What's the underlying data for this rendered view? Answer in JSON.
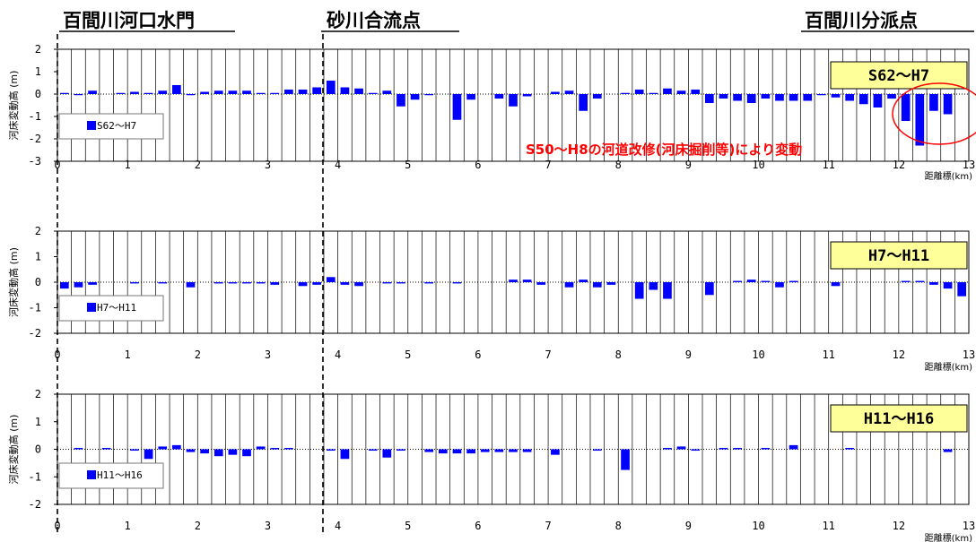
{
  "headers": {
    "left": "百間川河口水門",
    "middle": "砂川合流点",
    "right": "百間川分派点"
  },
  "annotation": {
    "text": "S50～H8の河道改修(河床掘削等)により変動",
    "color": "#ff0000"
  },
  "colors": {
    "bar": "#0000ff",
    "period_box": "#ffff99",
    "annotation": "#ff0000"
  },
  "chart_data": [
    {
      "type": "bar",
      "title": "S62～H7",
      "legend": "S62～H7",
      "ylabel": "河床変動高",
      "yunit": "(m)",
      "xlabel": "距離標",
      "xunit": "(km)",
      "ylim": [
        -3,
        2
      ],
      "yticks": [
        2,
        1,
        0,
        -1,
        -2,
        -3
      ],
      "xlim": [
        0,
        13
      ],
      "xticks": [
        0,
        1,
        2,
        3,
        4,
        5,
        6,
        7,
        8,
        9,
        10,
        11,
        12,
        13
      ],
      "grid": true,
      "x": [
        0.0,
        0.2,
        0.4,
        0.6,
        0.8,
        1.0,
        1.2,
        1.4,
        1.6,
        1.8,
        2.0,
        2.2,
        2.4,
        2.6,
        2.8,
        3.0,
        3.2,
        3.4,
        3.6,
        3.8,
        4.0,
        4.2,
        4.4,
        4.6,
        4.8,
        5.0,
        5.2,
        5.4,
        5.6,
        5.8,
        6.0,
        6.2,
        6.4,
        6.6,
        6.8,
        7.0,
        7.2,
        7.4,
        7.6,
        7.8,
        8.0,
        8.2,
        8.4,
        8.6,
        8.8,
        9.0,
        9.2,
        9.4,
        9.6,
        9.8,
        10.0,
        10.2,
        10.4,
        10.6,
        10.8,
        11.0,
        11.2,
        11.4,
        11.6,
        11.8,
        12.0,
        12.2,
        12.4,
        12.6,
        12.8
      ],
      "values": [
        0.05,
        -0.05,
        0.15,
        0,
        0.05,
        0.1,
        0.05,
        0.15,
        0.4,
        -0.05,
        0.1,
        0.15,
        0.15,
        0.15,
        0.05,
        0.05,
        0.2,
        0.2,
        0.3,
        0.6,
        0.3,
        0.25,
        0.05,
        0.15,
        -0.55,
        -0.25,
        -0.05,
        0,
        -1.15,
        -0.25,
        0,
        -0.2,
        -0.55,
        -0.1,
        0,
        0.1,
        0.15,
        -0.75,
        -0.2,
        0,
        0.05,
        0.2,
        0.05,
        0.25,
        0.15,
        0.2,
        -0.4,
        -0.2,
        -0.3,
        -0.4,
        -0.2,
        -0.3,
        -0.3,
        -0.3,
        -0.05,
        -0.15,
        -0.3,
        -0.45,
        -0.6,
        -0.2,
        -1.2,
        -2.3,
        -0.75,
        -0.9,
        0
      ]
    },
    {
      "type": "bar",
      "title": "H7～H11",
      "legend": "H7～H11",
      "ylabel": "河床変動高",
      "yunit": "(m)",
      "xlabel": "距離標",
      "xunit": "(km)",
      "ylim": [
        -2,
        2
      ],
      "yticks": [
        2,
        1,
        0,
        -1,
        -2
      ],
      "xlim": [
        0,
        13
      ],
      "xticks": [
        0,
        1,
        2,
        3,
        4,
        5,
        6,
        7,
        8,
        9,
        10,
        11,
        12,
        13
      ],
      "grid": true,
      "x": [
        0.0,
        0.2,
        0.4,
        0.6,
        0.8,
        1.0,
        1.2,
        1.4,
        1.6,
        1.8,
        2.0,
        2.2,
        2.4,
        2.6,
        2.8,
        3.0,
        3.2,
        3.4,
        3.6,
        3.8,
        4.0,
        4.2,
        4.4,
        4.6,
        4.8,
        5.0,
        5.2,
        5.4,
        5.6,
        5.8,
        6.0,
        6.2,
        6.4,
        6.6,
        6.8,
        7.0,
        7.2,
        7.4,
        7.6,
        7.8,
        8.0,
        8.2,
        8.4,
        8.6,
        8.8,
        9.0,
        9.2,
        9.4,
        9.6,
        9.8,
        10.0,
        10.2,
        10.4,
        10.6,
        10.8,
        11.0,
        11.2,
        11.4,
        11.6,
        11.8,
        12.0,
        12.2,
        12.4,
        12.6,
        12.8
      ],
      "values": [
        -0.25,
        -0.2,
        -0.1,
        0,
        0,
        -0.05,
        0,
        -0.05,
        0,
        -0.2,
        0,
        -0.05,
        -0.05,
        -0.05,
        -0.05,
        -0.1,
        0,
        -0.15,
        -0.1,
        0.2,
        -0.1,
        -0.15,
        0,
        -0.05,
        -0.05,
        0,
        -0.05,
        0,
        -0.05,
        0,
        0,
        0,
        0.1,
        0.1,
        -0.1,
        0,
        -0.2,
        0.1,
        -0.2,
        -0.1,
        0,
        -0.65,
        -0.3,
        -0.65,
        0,
        0,
        -0.5,
        0,
        0.05,
        0.1,
        0.05,
        -0.2,
        0.05,
        0,
        0,
        -0.15,
        0,
        0,
        0,
        0,
        0.05,
        0.05,
        -0.1,
        -0.25,
        -0.55
      ]
    },
    {
      "type": "bar",
      "title": "H11～H16",
      "legend": "H11～H16",
      "ylabel": "河床変動高",
      "yunit": "(m)",
      "xlabel": "距離標",
      "xunit": "(km)",
      "ylim": [
        -2,
        2
      ],
      "yticks": [
        2,
        1,
        0,
        -1,
        -2
      ],
      "xlim": [
        0,
        13
      ],
      "xticks": [
        0,
        1,
        2,
        3,
        4,
        5,
        6,
        7,
        8,
        9,
        10,
        11,
        12,
        13
      ],
      "grid": true,
      "x": [
        0.0,
        0.2,
        0.4,
        0.6,
        0.8,
        1.0,
        1.2,
        1.4,
        1.6,
        1.8,
        2.0,
        2.2,
        2.4,
        2.6,
        2.8,
        3.0,
        3.2,
        3.4,
        3.6,
        3.8,
        4.0,
        4.2,
        4.4,
        4.6,
        4.8,
        5.0,
        5.2,
        5.4,
        5.6,
        5.8,
        6.0,
        6.2,
        6.4,
        6.6,
        6.8,
        7.0,
        7.2,
        7.4,
        7.6,
        7.8,
        8.0,
        8.2,
        8.4,
        8.6,
        8.8,
        9.0,
        9.2,
        9.4,
        9.6,
        9.8,
        10.0,
        10.2,
        10.4,
        10.6,
        10.8,
        11.0,
        11.2,
        11.4,
        11.6,
        11.8,
        12.0,
        12.2,
        12.4,
        12.6,
        12.8
      ],
      "values": [
        0,
        0.05,
        0,
        0.05,
        0,
        -0.05,
        -0.35,
        0.1,
        0.15,
        -0.1,
        -0.15,
        -0.25,
        -0.2,
        -0.25,
        0.1,
        0.05,
        0.05,
        0,
        0,
        -0.05,
        -0.35,
        0,
        -0.05,
        -0.3,
        -0.05,
        0,
        -0.1,
        -0.15,
        -0.15,
        -0.15,
        -0.1,
        -0.1,
        -0.1,
        -0.1,
        0,
        -0.2,
        0,
        0,
        -0.05,
        0,
        -0.75,
        0,
        0,
        0.05,
        0.1,
        -0.05,
        0,
        0.05,
        0.05,
        0,
        0.05,
        0,
        0.15,
        0,
        0,
        0,
        0.05,
        0,
        0,
        0,
        0,
        0,
        0,
        -0.1,
        0
      ]
    }
  ]
}
